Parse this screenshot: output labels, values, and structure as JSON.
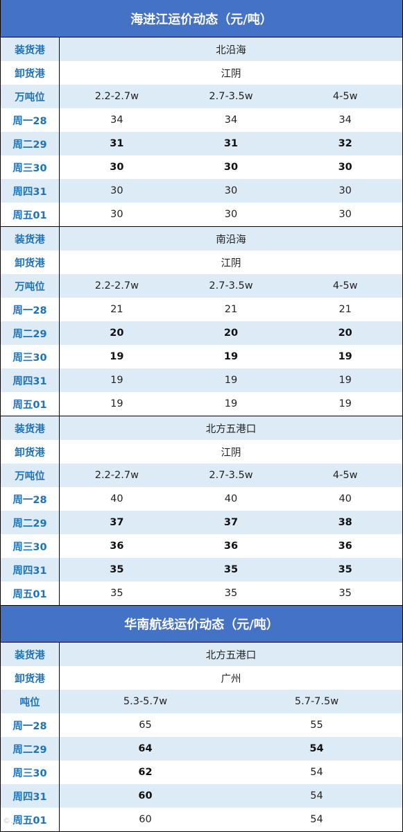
{
  "sections": [
    {
      "title": "海进江运价动态（元/吨）",
      "blocks": [
        {
          "rows": [
            {
              "label": "装货港",
              "cells": [
                "北沿海"
              ],
              "bold": false
            },
            {
              "label": "卸货港",
              "cells": [
                "江阴"
              ],
              "bold": false
            },
            {
              "label": "万吨位",
              "cells": [
                "2.2-2.7w",
                "2.7-3.5w",
                "4-5w"
              ],
              "bold": false
            },
            {
              "label": "周一28",
              "cells": [
                "34",
                "34",
                "34"
              ],
              "bold": false
            },
            {
              "label": "周二29",
              "cells": [
                "31",
                "31",
                "32"
              ],
              "bold": true
            },
            {
              "label": "周三30",
              "cells": [
                "30",
                "30",
                "30"
              ],
              "bold": true
            },
            {
              "label": "周四31",
              "cells": [
                "30",
                "30",
                "30"
              ],
              "bold": false
            },
            {
              "label": "周五01",
              "cells": [
                "30",
                "30",
                "30"
              ],
              "bold": false
            }
          ]
        },
        {
          "rows": [
            {
              "label": "装货港",
              "cells": [
                "南沿海"
              ],
              "bold": false
            },
            {
              "label": "卸货港",
              "cells": [
                "江阴"
              ],
              "bold": false
            },
            {
              "label": "万吨位",
              "cells": [
                "2.2-2.7w",
                "2.7-3.5w",
                "4-5w"
              ],
              "bold": false
            },
            {
              "label": "周一28",
              "cells": [
                "21",
                "21",
                "21"
              ],
              "bold": false
            },
            {
              "label": "周二29",
              "cells": [
                "20",
                "20",
                "20"
              ],
              "bold": true
            },
            {
              "label": "周三30",
              "cells": [
                "19",
                "19",
                "19"
              ],
              "bold": true
            },
            {
              "label": "周四31",
              "cells": [
                "19",
                "19",
                "19"
              ],
              "bold": false
            },
            {
              "label": "周五01",
              "cells": [
                "19",
                "19",
                "19"
              ],
              "bold": false
            }
          ]
        },
        {
          "rows": [
            {
              "label": "装货港",
              "cells": [
                "北方五港口"
              ],
              "bold": false
            },
            {
              "label": "卸货港",
              "cells": [
                "江阴"
              ],
              "bold": false
            },
            {
              "label": "万吨位",
              "cells": [
                "2.2-2.7w",
                "2.7-3.5w",
                "4-5w"
              ],
              "bold": false
            },
            {
              "label": "周一28",
              "cells": [
                "40",
                "40",
                "40"
              ],
              "bold": false
            },
            {
              "label": "周二29",
              "cells": [
                "37",
                "37",
                "38"
              ],
              "bold": true
            },
            {
              "label": "周三30",
              "cells": [
                "36",
                "36",
                "36"
              ],
              "bold": true
            },
            {
              "label": "周四31",
              "cells": [
                "35",
                "35",
                "35"
              ],
              "bold": true
            },
            {
              "label": "周五01",
              "cells": [
                "35",
                "35",
                "35"
              ],
              "bold": false
            }
          ]
        }
      ]
    },
    {
      "title": "华南航线运价动态（元/吨）",
      "blocks": [
        {
          "rows": [
            {
              "label": "装货港",
              "cells": [
                "北方五港口"
              ],
              "bold": false
            },
            {
              "label": "卸货港",
              "cells": [
                "广州"
              ],
              "bold": false
            },
            {
              "label": "吨位",
              "cells": [
                "5.3-5.7w",
                "5.7-7.5w"
              ],
              "bold": false
            },
            {
              "label": "周一28",
              "cells": [
                "65",
                "55"
              ],
              "bold": false
            },
            {
              "label": "周二29",
              "cells": [
                "64",
                "54"
              ],
              "bold": true
            },
            {
              "label": "周三30",
              "cells": [
                "62",
                "54"
              ],
              "bold": "first"
            },
            {
              "label": "周四31",
              "cells": [
                "60",
                "54"
              ],
              "bold": "first"
            },
            {
              "label": "周五01",
              "cells": [
                "60",
                "54"
              ],
              "bold": false
            }
          ]
        }
      ]
    }
  ],
  "watermark": "©…"
}
